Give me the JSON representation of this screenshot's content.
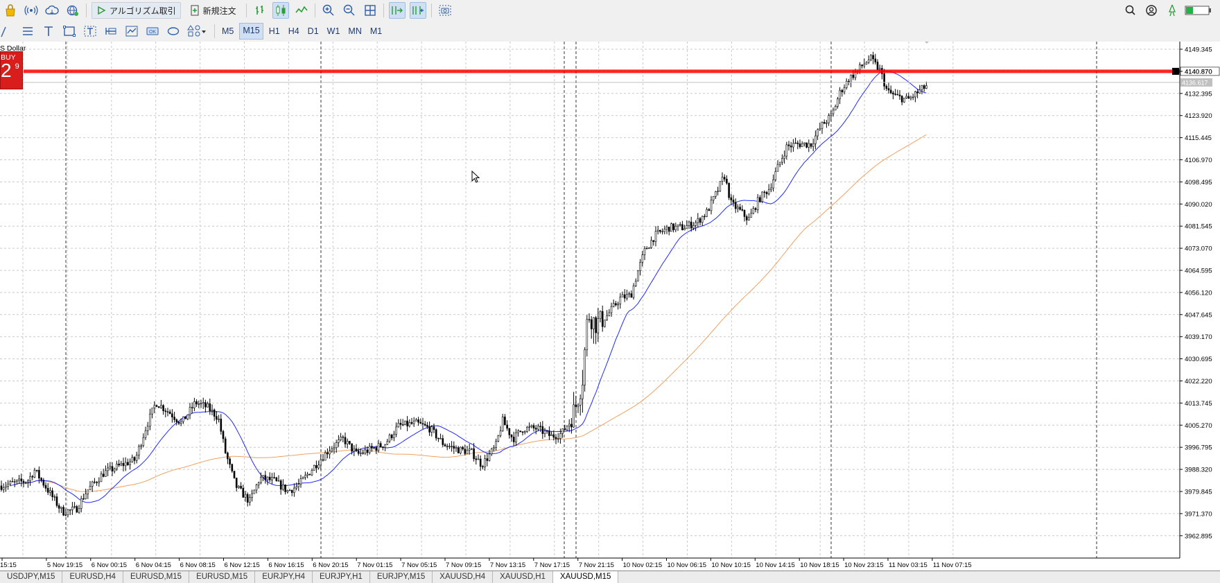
{
  "toolbar": {
    "algo_trading_label": "アルゴリズム取引",
    "new_order_label": "新規注文",
    "timeframes": [
      "M5",
      "M15",
      "H1",
      "H4",
      "D1",
      "W1",
      "MN",
      "M1"
    ],
    "active_timeframe": "M15"
  },
  "chart": {
    "symbol_label": "S Dollar",
    "buy_label": "BUY",
    "buy_price_big": "2",
    "buy_price_sup": "9",
    "current_price_label": "4136.617",
    "line_level_label": "4140.870",
    "line_level_value": 4140.87,
    "current_price_value": 4136.617,
    "price_ticks": [
      "4149.345",
      "4140.870",
      "4132.395",
      "4123.920",
      "4115.445",
      "4106.970",
      "4098.495",
      "4090.020",
      "4081.545",
      "4073.070",
      "4064.595",
      "4056.120",
      "4047.645",
      "4039.170",
      "4030.695",
      "4022.220",
      "4013.745",
      "4005.270",
      "3996.795",
      "3988.320",
      "3979.845",
      "3971.370",
      "3962.895"
    ],
    "time_ticks": [
      "15:15",
      "5 Nov 19:15",
      "6 Nov 00:15",
      "6 Nov 04:15",
      "6 Nov 08:15",
      "6 Nov 12:15",
      "6 Nov 16:15",
      "6 Nov 20:15",
      "7 Nov 01:15",
      "7 Nov 05:15",
      "7 Nov 09:15",
      "7 Nov 13:15",
      "7 Nov 17:15",
      "7 Nov 21:15",
      "10 Nov 02:15",
      "10 Nov 06:15",
      "10 Nov 10:15",
      "10 Nov 14:15",
      "10 Nov 18:15",
      "10 Nov 23:15",
      "11 Nov 03:15",
      "11 Nov 07:15"
    ],
    "colors": {
      "candle": "#000000",
      "ma_fast": "#1f2bff",
      "ma_slow": "#f0a060",
      "level_line": "#ff0000",
      "buy_box": "#d91c1c"
    }
  },
  "tabs": [
    "USDJPY,M15",
    "EURUSD,H4",
    "EURUSD,M15",
    "EURUSD,M15",
    "EURJPY,H4",
    "EURJPY,H1",
    "EURJPY,M15",
    "XAUUSD,H4",
    "XAUUSD,H1",
    "XAUUSD,M15"
  ],
  "active_tab": "XAUUSD,M15"
}
